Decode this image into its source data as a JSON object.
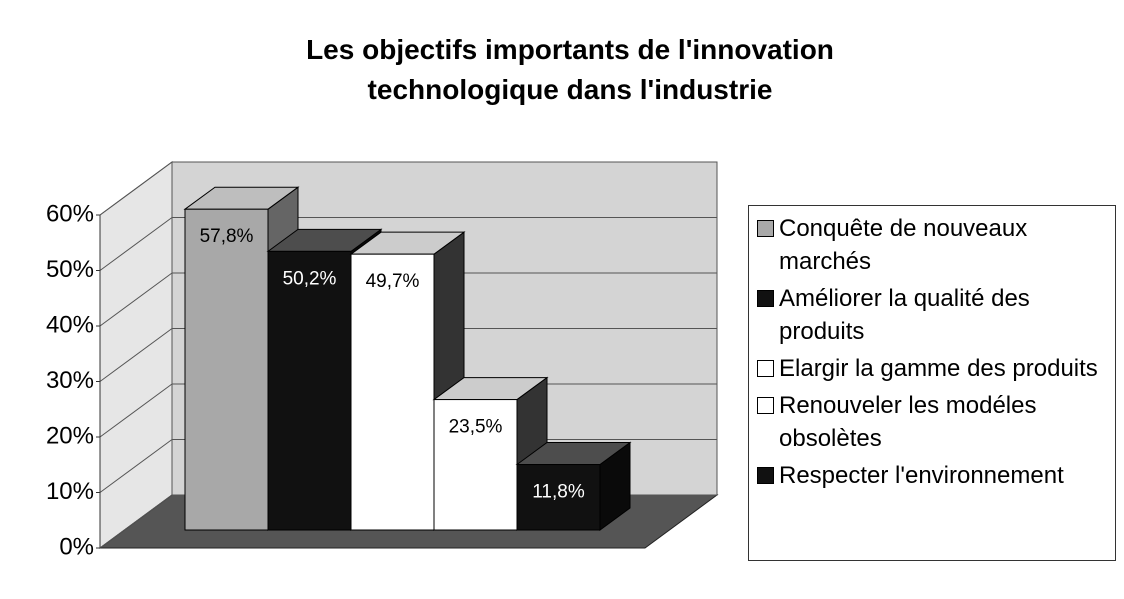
{
  "chart_data": {
    "type": "bar3d",
    "title": "Les objectifs importants de l'innovation technologique dans l'industrie",
    "categories": [
      "Conquête de nouveaux marchés",
      "Améliorer la qualité des produits",
      "Elargir la gamme des produits",
      "Renouveler les modéles obsolètes",
      "Respecter l'environnement"
    ],
    "values": [
      57.8,
      50.2,
      49.7,
      23.5,
      11.8
    ],
    "value_labels": [
      "57,8%",
      "50,2%",
      "49,7%",
      "23,5%",
      "11,8%"
    ],
    "colors": [
      "#a8a8a8",
      "#111111",
      "#ffffff",
      "#ffffff",
      "#111111"
    ],
    "ylim": [
      0,
      60
    ],
    "yticks": [
      {
        "value": 0,
        "label": "0%"
      },
      {
        "value": 10,
        "label": "10%"
      },
      {
        "value": 20,
        "label": "20%"
      },
      {
        "value": 30,
        "label": "30%"
      },
      {
        "value": 40,
        "label": "40%"
      },
      {
        "value": 50,
        "label": "50%"
      },
      {
        "value": 60,
        "label": "60%"
      }
    ],
    "grid": true,
    "legend": "right"
  }
}
